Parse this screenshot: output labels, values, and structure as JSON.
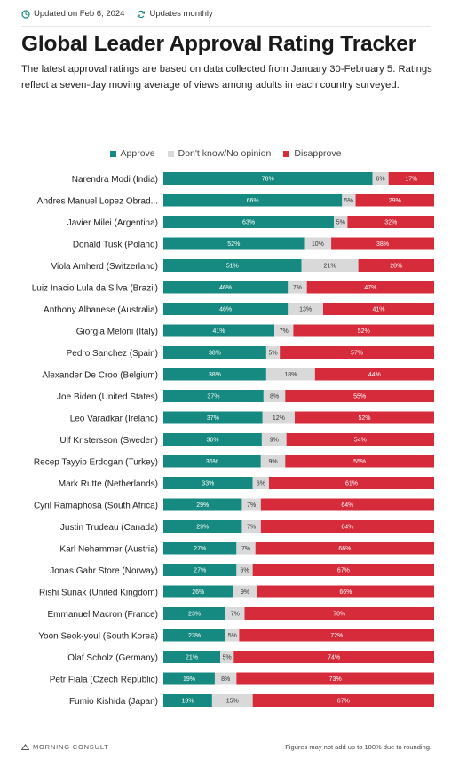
{
  "header": {
    "updated": "Updated on Feb 6, 2024",
    "frequency": "Updates monthly",
    "title": "Global Leader Approval Rating Tracker",
    "subtitle": "The latest approval ratings are based on data collected from January 30-February 5. Ratings reflect a seven-day moving average of views among adults in each country surveyed."
  },
  "colors": {
    "approve": "#168a80",
    "dontknow": "#d9d9d9",
    "disapprove": "#d52b3a"
  },
  "chart_data": {
    "type": "bar",
    "orientation": "horizontal",
    "stacked": true,
    "legend": {
      "position": "top-center",
      "labels": [
        "Approve",
        "Don't know/No opinion",
        "Disapprove"
      ]
    },
    "categories": [
      "Narendra Modi (India)",
      "Andres Manuel Lopez Obrad...",
      "Javier Milei (Argentina)",
      "Donald Tusk (Poland)",
      "Viola Amherd (Switzerland)",
      "Luiz Inacio Lula da Silva (Brazil)",
      "Anthony Albanese (Australia)",
      "Giorgia Meloni (Italy)",
      "Pedro Sanchez (Spain)",
      "Alexander De Croo (Belgium)",
      "Joe Biden (United States)",
      "Leo Varadkar (Ireland)",
      "Ulf Kristersson (Sweden)",
      "Recep Tayyip Erdogan (Turkey)",
      "Mark Rutte (Netherlands)",
      "Cyril Ramaphosa (South Africa)",
      "Justin Trudeau (Canada)",
      "Karl Nehammer (Austria)",
      "Jonas Gahr Store (Norway)",
      "Rishi Sunak (United Kingdom)",
      "Emmanuel Macron (France)",
      "Yoon Seok-youl (South Korea)",
      "Olaf Scholz (Germany)",
      "Petr Fiala (Czech Republic)",
      "Fumio Kishida (Japan)"
    ],
    "series": [
      {
        "name": "Approve",
        "values": [
          78,
          66,
          63,
          52,
          51,
          46,
          46,
          41,
          38,
          38,
          37,
          37,
          36,
          36,
          33,
          29,
          29,
          27,
          27,
          26,
          23,
          23,
          21,
          19,
          18
        ]
      },
      {
        "name": "Don't know/No opinion",
        "values": [
          6,
          5,
          5,
          10,
          21,
          7,
          13,
          7,
          5,
          18,
          8,
          12,
          9,
          9,
          6,
          7,
          7,
          7,
          6,
          9,
          7,
          5,
          5,
          8,
          15
        ]
      },
      {
        "name": "Disapprove",
        "values": [
          17,
          29,
          32,
          38,
          28,
          47,
          41,
          52,
          57,
          44,
          55,
          52,
          54,
          55,
          61,
          64,
          64,
          66,
          67,
          66,
          70,
          72,
          74,
          73,
          67
        ]
      }
    ],
    "value_suffix": "%"
  },
  "footer": {
    "brand": "MORNING CONSULT",
    "note": "Figures may not add up to 100% due to rounding."
  }
}
